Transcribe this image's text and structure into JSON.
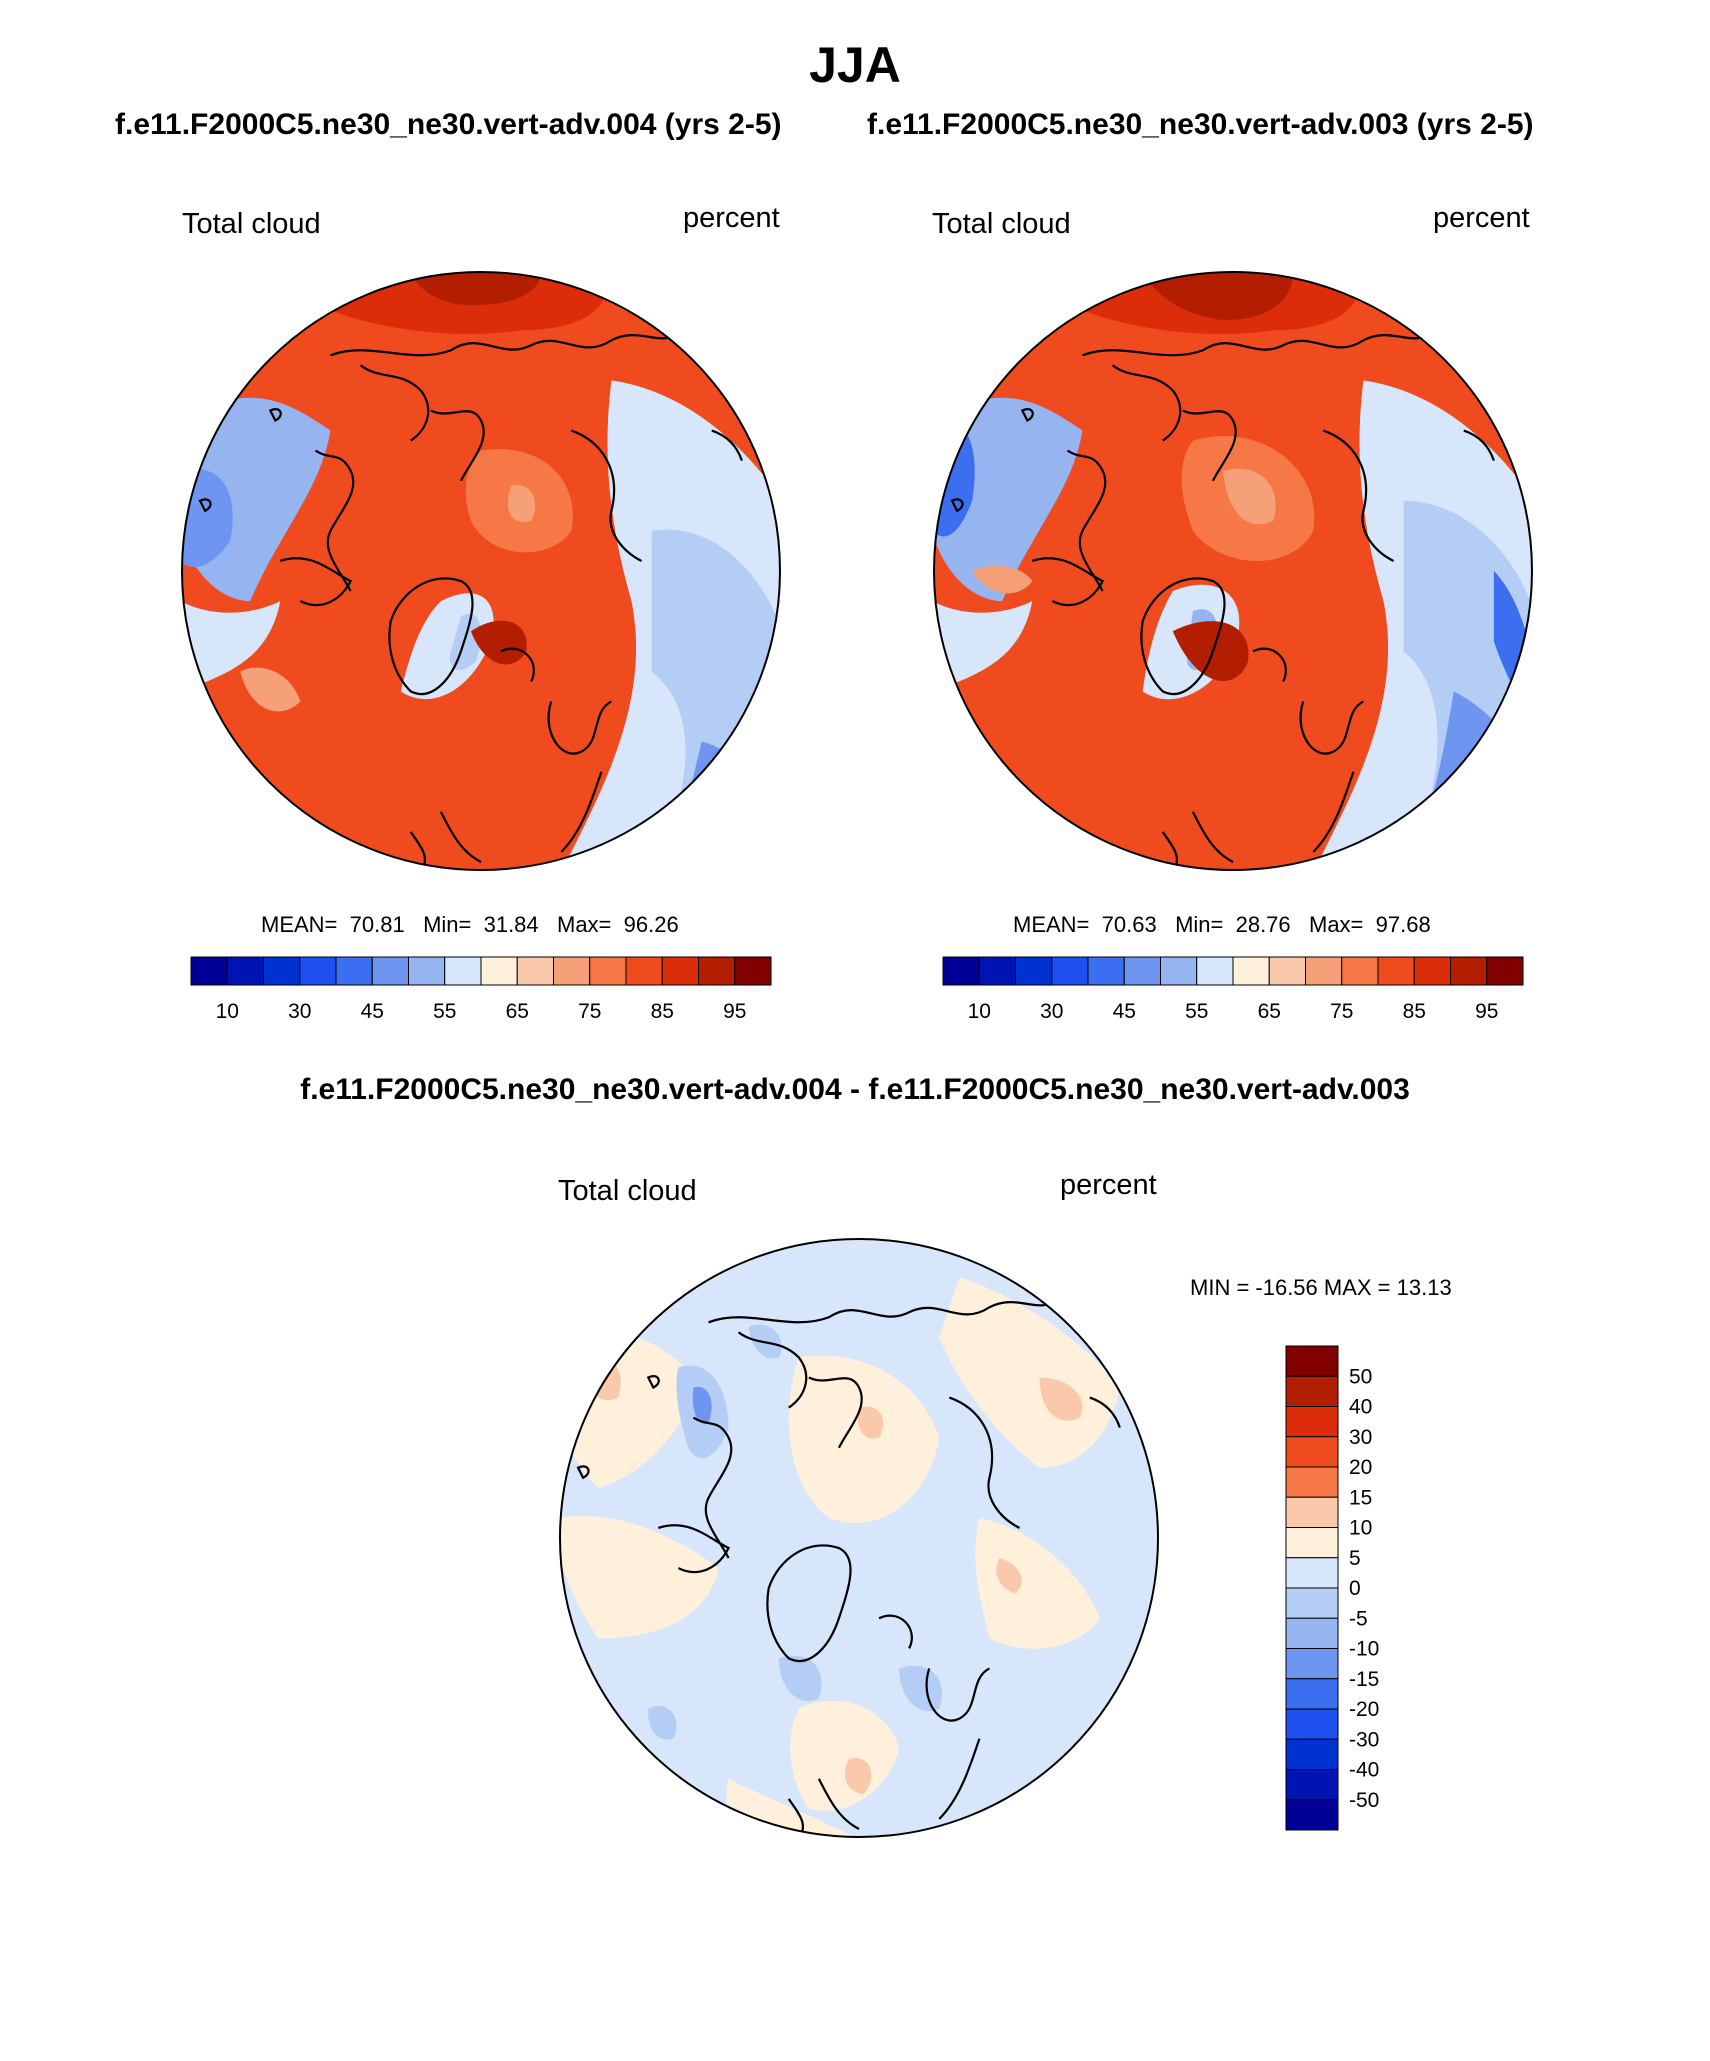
{
  "page": {
    "season": "JJA",
    "case1_title": "f.e11.F2000C5.ne30_ne30.vert-adv.004 (yrs 2-5)",
    "case2_title": "f.e11.F2000C5.ne30_ne30.vert-adv.003 (yrs 2-5)",
    "diff_title": "f.e11.F2000C5.ne30_ne30.vert-adv.004 - f.e11.F2000C5.ne30_ne30.vert-adv.003"
  },
  "panels": [
    {
      "variable": "Total cloud",
      "units": "percent",
      "stats": {
        "mean_label": "MEAN=",
        "mean": "70.81",
        "min_label": "Min=",
        "min": "31.84",
        "max_label": "Max=",
        "max": "96.26"
      }
    },
    {
      "variable": "Total cloud",
      "units": "percent",
      "stats": {
        "mean_label": "MEAN=",
        "mean": "70.63",
        "min_label": "Min=",
        "min": "28.76",
        "max_label": "Max=",
        "max": "97.68"
      }
    },
    {
      "variable": "Total cloud",
      "units": "percent",
      "stats": {
        "text": "MIN = -16.56 MAX =  13.13"
      }
    }
  ],
  "colorbar_abs": {
    "colors": [
      "#000096",
      "#0014b4",
      "#0032d2",
      "#1e50f0",
      "#3c6ef0",
      "#6e96f0",
      "#96b4f0",
      "#d7e6fa",
      "#fff0dc",
      "#fac8aa",
      "#f5a078",
      "#f57846",
      "#f04b1e",
      "#dc2d0a",
      "#b41e00",
      "#820000"
    ],
    "tick_labels": [
      "10",
      "30",
      "45",
      "55",
      "65",
      "75",
      "85",
      "95"
    ]
  },
  "colorbar_diff": {
    "colors": [
      "#820000",
      "#b41e00",
      "#dc2d0a",
      "#f04b1e",
      "#f57846",
      "#fac8aa",
      "#fff0dc",
      "#d7e6fa",
      "#b4cdf5",
      "#96b4f0",
      "#6e96f0",
      "#3c6ef0",
      "#1e50f0",
      "#0032d2",
      "#0014b4",
      "#000096"
    ],
    "tick_labels": [
      "50",
      "40",
      "30",
      "20",
      "15",
      "10",
      "5",
      "0",
      "-5",
      "-10",
      "-15",
      "-20",
      "-30",
      "-40",
      "-50"
    ]
  },
  "icon": {
    "coastline": "coastline-outline-icon"
  }
}
